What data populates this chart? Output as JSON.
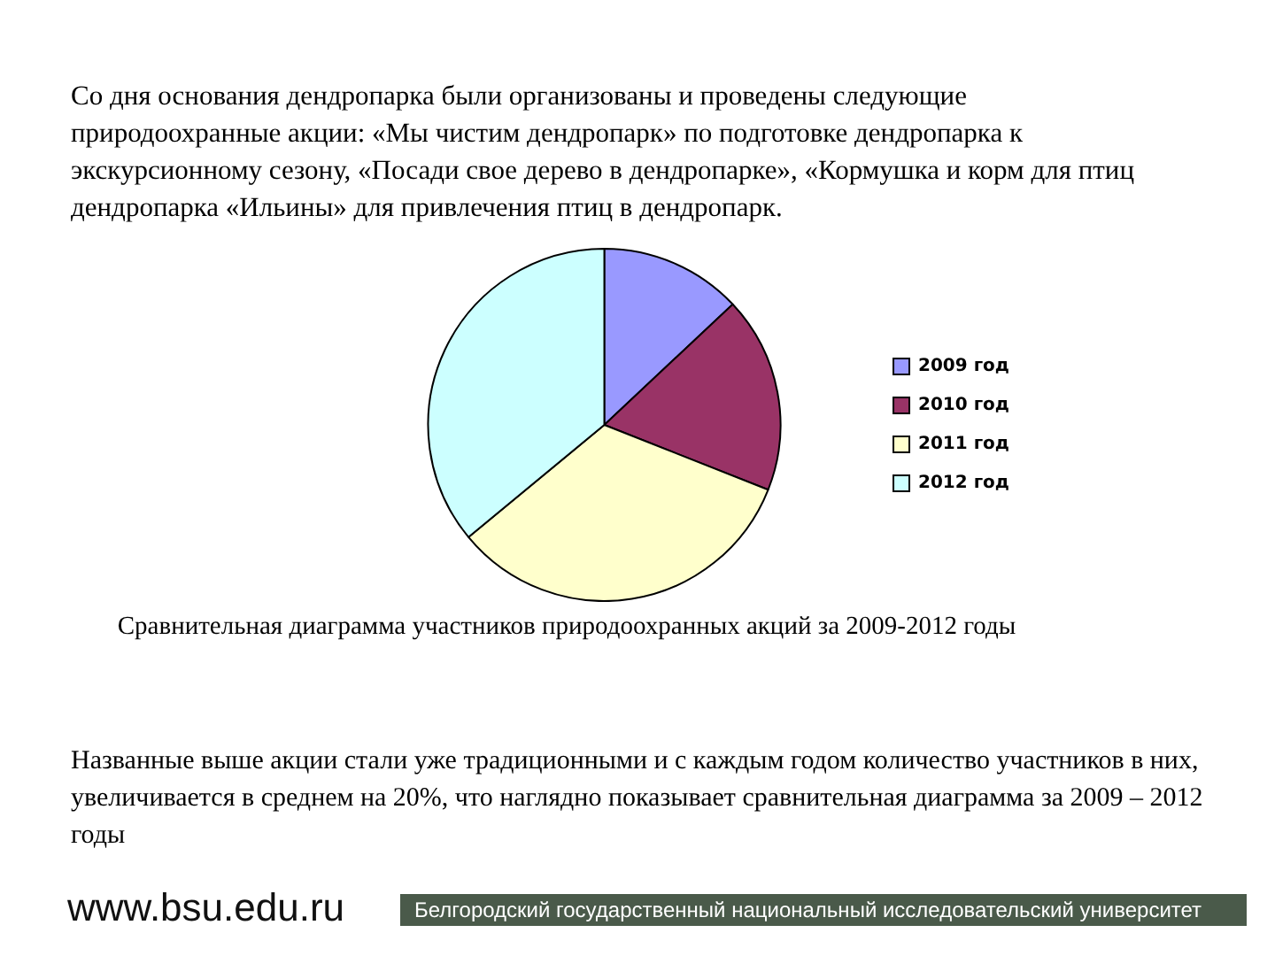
{
  "chart_data": {
    "type": "pie",
    "title": "Со дня основания дендропарка были организованы и проведены следующие природоохранные акции: «Мы чистим дендропарк» по подготовке дендропарка к экскурсионному сезону, «Посади свое дерево в дендропарке», «Кормушка и корм для птиц дендропарка «Ильины» для привлечения птиц в дендропарк.",
    "categories": [
      "2009 год",
      "2010 год",
      "2011 год",
      "2012 год"
    ],
    "values": [
      13,
      18,
      33,
      36
    ],
    "colors": [
      "#9999ff",
      "#993366",
      "#ffffcc",
      "#ccffff"
    ],
    "legend": "right",
    "annotations": [
      "Сравнительная диаграмма участников природоохранных акций за 2009-2012 годы",
      "Названные выше акции стали уже традиционными и с каждым годом количество участников в них, увеличивается в среднем на 20%, что наглядно показывает сравнительная диаграмма за 2009 – 2012 годы",
      "www.bsu.edu.ru",
      "Белгородский государственный национальный исследовательский университет"
    ]
  }
}
